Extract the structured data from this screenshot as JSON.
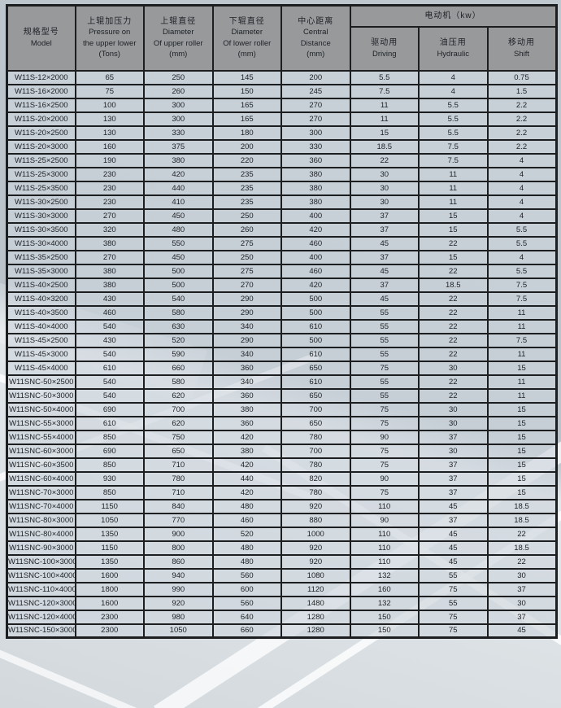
{
  "colors": {
    "border": "#1c1e20",
    "header_bg": "#97999b",
    "cell_bg": "rgba(205,213,220,0.66)",
    "text": "#1d2125"
  },
  "table": {
    "headers": {
      "model": {
        "zh": "规格型号",
        "en": "Model"
      },
      "pressure": {
        "zh": "上辊加压力",
        "en1": "Pressure on",
        "en2": "the upper lower",
        "en3": "(Tons)"
      },
      "upper_roller": {
        "zh": "上辊直径",
        "en1": "Diameter",
        "en2": "Of upper roller",
        "en3": "(mm)"
      },
      "lower_roller": {
        "zh": "下辊直径",
        "en1": "Diameter",
        "en2": "Of lower roller",
        "en3": "(mm)"
      },
      "central": {
        "zh": "中心距离",
        "en1": "Central",
        "en2": "Distance",
        "en3": "(mm)"
      },
      "motor_group": {
        "zh": "电动机（kw）"
      },
      "driving": {
        "zh": "驱动用",
        "en": "Driving"
      },
      "hydraulic": {
        "zh": "油压用",
        "en": "Hydraulic"
      },
      "shift": {
        "zh": "移动用",
        "en": "Shift"
      }
    },
    "rows": [
      [
        "W11S-12×2000",
        "65",
        "250",
        "145",
        "200",
        "5.5",
        "4",
        "0.75"
      ],
      [
        "W11S-16×2000",
        "75",
        "260",
        "150",
        "245",
        "7.5",
        "4",
        "1.5"
      ],
      [
        "W11S-16×2500",
        "100",
        "300",
        "165",
        "270",
        "11",
        "5.5",
        "2.2"
      ],
      [
        "W11S-20×2000",
        "130",
        "300",
        "165",
        "270",
        "11",
        "5.5",
        "2.2"
      ],
      [
        "W11S-20×2500",
        "130",
        "330",
        "180",
        "300",
        "15",
        "5.5",
        "2.2"
      ],
      [
        "W11S-20×3000",
        "160",
        "375",
        "200",
        "330",
        "18.5",
        "7.5",
        "2.2"
      ],
      [
        "W11S-25×2500",
        "190",
        "380",
        "220",
        "360",
        "22",
        "7.5",
        "4"
      ],
      [
        "W11S-25×3000",
        "230",
        "420",
        "235",
        "380",
        "30",
        "11",
        "4"
      ],
      [
        "W11S-25×3500",
        "230",
        "440",
        "235",
        "380",
        "30",
        "11",
        "4"
      ],
      [
        "W11S-30×2500",
        "230",
        "410",
        "235",
        "380",
        "30",
        "11",
        "4"
      ],
      [
        "W11S-30×3000",
        "270",
        "450",
        "250",
        "400",
        "37",
        "15",
        "4"
      ],
      [
        "W11S-30×3500",
        "320",
        "480",
        "260",
        "420",
        "37",
        "15",
        "5.5"
      ],
      [
        "W11S-30×4000",
        "380",
        "550",
        "275",
        "460",
        "45",
        "22",
        "5.5"
      ],
      [
        "W11S-35×2500",
        "270",
        "450",
        "250",
        "400",
        "37",
        "15",
        "4"
      ],
      [
        "W11S-35×3000",
        "380",
        "500",
        "275",
        "460",
        "45",
        "22",
        "5.5"
      ],
      [
        "W11S-40×2500",
        "380",
        "500",
        "270",
        "420",
        "37",
        "18.5",
        "7.5"
      ],
      [
        "W11S-40×3200",
        "430",
        "540",
        "290",
        "500",
        "45",
        "22",
        "7.5"
      ],
      [
        "W11S-40×3500",
        "460",
        "580",
        "290",
        "500",
        "55",
        "22",
        "11"
      ],
      [
        "W11S-40×4000",
        "540",
        "630",
        "340",
        "610",
        "55",
        "22",
        "11"
      ],
      [
        "W11S-45×2500",
        "430",
        "520",
        "290",
        "500",
        "55",
        "22",
        "7.5"
      ],
      [
        "W11S-45×3000",
        "540",
        "590",
        "340",
        "610",
        "55",
        "22",
        "11"
      ],
      [
        "W11S-45×4000",
        "610",
        "660",
        "360",
        "650",
        "75",
        "30",
        "15"
      ],
      [
        "W11SNC-50×2500",
        "540",
        "580",
        "340",
        "610",
        "55",
        "22",
        "11"
      ],
      [
        "W11SNC-50×3000",
        "540",
        "620",
        "360",
        "650",
        "55",
        "22",
        "11"
      ],
      [
        "W11SNC-50×4000",
        "690",
        "700",
        "380",
        "700",
        "75",
        "30",
        "15"
      ],
      [
        "W11SNC-55×3000",
        "610",
        "620",
        "360",
        "650",
        "75",
        "30",
        "15"
      ],
      [
        "W11SNC-55×4000",
        "850",
        "750",
        "420",
        "780",
        "90",
        "37",
        "15"
      ],
      [
        "W11SNC-60×3000",
        "690",
        "650",
        "380",
        "700",
        "75",
        "30",
        "15"
      ],
      [
        "W11SNC-60×3500",
        "850",
        "710",
        "420",
        "780",
        "75",
        "37",
        "15"
      ],
      [
        "W11SNC-60×4000",
        "930",
        "780",
        "440",
        "820",
        "90",
        "37",
        "15"
      ],
      [
        "W11SNC-70×3000",
        "850",
        "710",
        "420",
        "780",
        "75",
        "37",
        "15"
      ],
      [
        "W11SNC-70×4000",
        "1150",
        "840",
        "480",
        "920",
        "110",
        "45",
        "18.5"
      ],
      [
        "W11SNC-80×3000",
        "1050",
        "770",
        "460",
        "880",
        "90",
        "37",
        "18.5"
      ],
      [
        "W11SNC-80×4000",
        "1350",
        "900",
        "520",
        "1000",
        "110",
        "45",
        "22"
      ],
      [
        "W11SNC-90×3000",
        "1150",
        "800",
        "480",
        "920",
        "110",
        "45",
        "18.5"
      ],
      [
        "W11SNC-100×3000",
        "1350",
        "860",
        "480",
        "920",
        "110",
        "45",
        "22"
      ],
      [
        "W11SNC-100×4000",
        "1600",
        "940",
        "560",
        "1080",
        "132",
        "55",
        "30"
      ],
      [
        "W11SNC-110×4000",
        "1800",
        "990",
        "600",
        "1120",
        "160",
        "75",
        "37"
      ],
      [
        "W11SNC-120×3000",
        "1600",
        "920",
        "560",
        "1480",
        "132",
        "55",
        "30"
      ],
      [
        "W11SNC-120×4000",
        "2300",
        "980",
        "640",
        "1280",
        "150",
        "75",
        "37"
      ],
      [
        "W11SNC-150×3000",
        "2300",
        "1050",
        "660",
        "1280",
        "150",
        "75",
        "45"
      ]
    ]
  }
}
